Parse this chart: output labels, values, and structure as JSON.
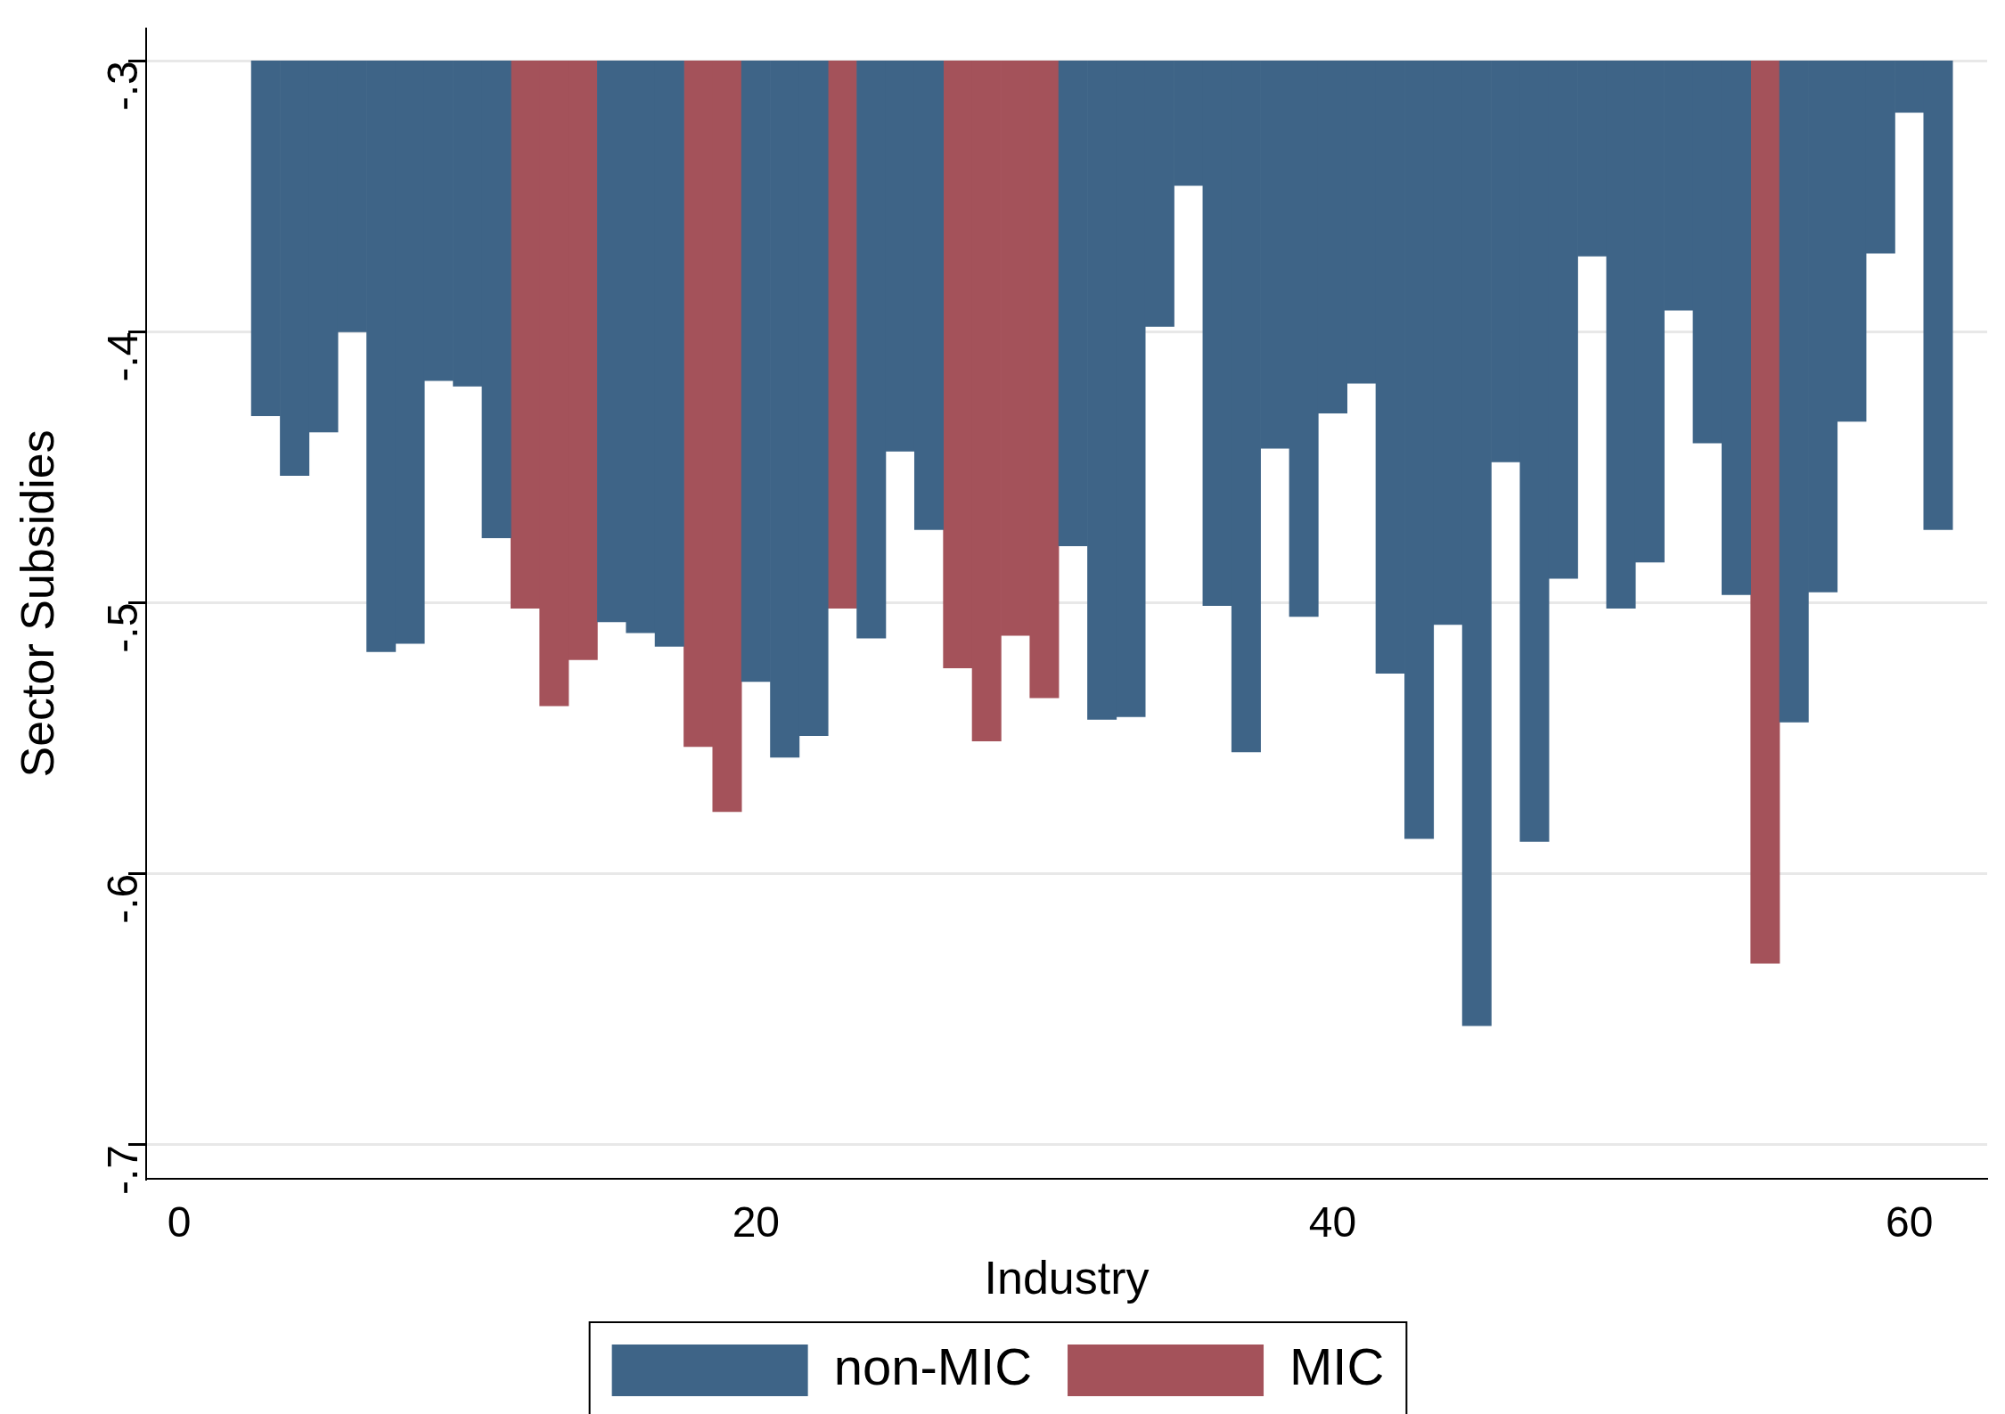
{
  "chart_data": {
    "type": "bar",
    "xlabel": "Industry",
    "ylabel": "Sector Subsidies",
    "xlim": [
      -1.15,
      62.7
    ],
    "xticks": [
      0,
      20,
      40,
      60
    ],
    "ylim": [
      -0.7125,
      -0.288
    ],
    "yticks": [
      {
        "value": -0.3,
        "label": "-.3"
      },
      {
        "value": -0.4,
        "label": "-.4"
      },
      {
        "value": -0.5,
        "label": "-.5"
      },
      {
        "value": -0.6,
        "label": "-.6"
      },
      {
        "value": -0.7,
        "label": "-.7"
      }
    ],
    "grid": "y",
    "legend": "bottom",
    "series": [
      {
        "name": "non-MIC",
        "color": "#3e6487",
        "x": [
          3,
          4,
          5,
          6,
          7,
          8,
          9,
          10,
          11,
          15,
          16,
          17,
          20,
          21,
          22,
          24,
          25,
          26,
          31,
          32,
          33,
          34,
          35,
          36,
          37,
          38,
          39,
          40,
          41,
          42,
          43,
          44,
          45,
          46,
          47,
          48,
          49,
          50,
          51,
          52,
          53,
          54,
          56,
          57,
          58,
          59,
          60,
          61
        ],
        "base": [
          -0.3,
          -0.3,
          -0.3,
          -0.3,
          -0.3,
          -0.3,
          -0.3,
          -0.3,
          -0.3,
          -0.3,
          -0.3,
          -0.3,
          -0.3,
          -0.3,
          -0.3,
          -0.3,
          -0.3,
          -0.3,
          -0.3,
          -0.3,
          -0.3,
          -0.3,
          -0.3,
          -0.3,
          -0.3,
          -0.3,
          -0.3,
          -0.3,
          -0.3,
          -0.3,
          -0.3,
          -0.3,
          -0.3,
          -0.3,
          -0.3,
          -0.3,
          -0.3,
          -0.3,
          -0.3,
          -0.3,
          -0.3,
          -0.3,
          -0.3,
          -0.3,
          -0.3,
          -0.3,
          -0.3,
          -0.3
        ],
        "values": [
          -0.131,
          -0.153,
          -0.137,
          -0.1,
          -0.218,
          -0.215,
          -0.118,
          -0.12,
          -0.176,
          -0.207,
          -0.211,
          -0.216,
          -0.229,
          -0.257,
          -0.249,
          -0.213,
          -0.144,
          -0.173,
          -0.179,
          -0.243,
          -0.242,
          -0.098,
          -0.046,
          -0.201,
          -0.255,
          -0.143,
          -0.205,
          -0.13,
          -0.119,
          -0.226,
          -0.287,
          -0.208,
          -0.356,
          -0.148,
          -0.288,
          -0.191,
          -0.072,
          -0.202,
          -0.185,
          -0.092,
          -0.141,
          -0.197,
          -0.244,
          -0.196,
          -0.133,
          -0.071,
          -0.019,
          -0.173
        ]
      },
      {
        "name": "MIC",
        "color": "#a4525a",
        "x": [
          12,
          13,
          14,
          18,
          19,
          23,
          27,
          28,
          29,
          30,
          55
        ],
        "base": [
          -0.3,
          -0.3,
          -0.3,
          -0.3,
          -0.3,
          -0.3,
          -0.3,
          -0.3,
          -0.3,
          -0.3,
          -0.3
        ],
        "values": [
          -0.202,
          -0.238,
          -0.221,
          -0.253,
          -0.277,
          -0.202,
          -0.224,
          -0.251,
          -0.212,
          -0.235,
          -0.333
        ]
      }
    ]
  }
}
